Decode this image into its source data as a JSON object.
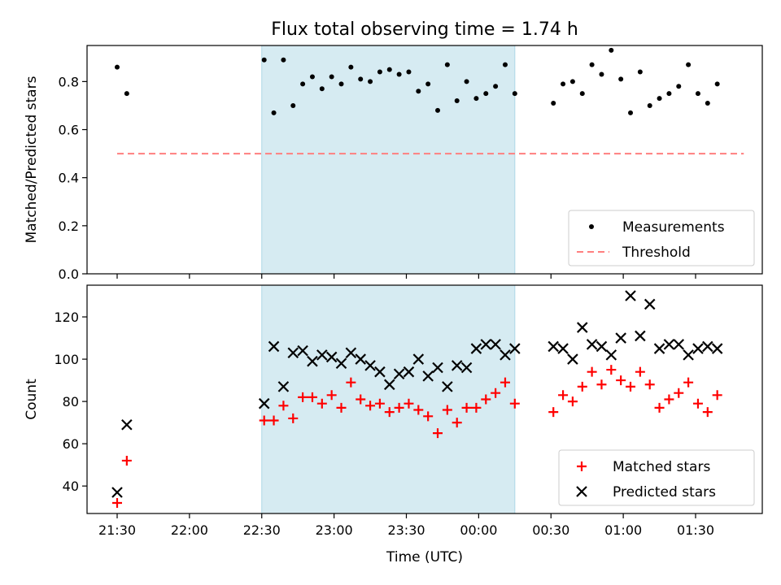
{
  "figure": {
    "title": "Flux total observing time = 1.74 h",
    "shade_color": "#add8e6",
    "shade_range": [
      "22:30",
      "00:15"
    ]
  },
  "chart_data": [
    {
      "type": "scatter",
      "ylabel": "Matched/Predicted stars",
      "xlabel": "",
      "ylim": [
        0,
        0.95
      ],
      "yticks": [
        "0.0",
        "0.2",
        "0.4",
        "0.6",
        "0.8"
      ],
      "ytick_values": [
        0,
        0.2,
        0.4,
        0.6,
        0.8
      ],
      "legend": "lower right",
      "legend_entries": [
        "Measurements",
        "Threshold"
      ],
      "series": [
        {
          "name": "Measurements",
          "color": "#000000",
          "marker": "dot",
          "x": [
            "21:30",
            "21:34",
            "22:31",
            "22:35",
            "22:39",
            "22:43",
            "22:47",
            "22:51",
            "22:55",
            "22:59",
            "23:03",
            "23:07",
            "23:11",
            "23:15",
            "23:19",
            "23:23",
            "23:27",
            "23:31",
            "23:35",
            "23:39",
            "23:43",
            "23:47",
            "23:51",
            "23:55",
            "23:59",
            "00:03",
            "00:07",
            "00:11",
            "00:15",
            "00:31",
            "00:35",
            "00:39",
            "00:43",
            "00:47",
            "00:51",
            "00:55",
            "00:59",
            "01:03",
            "01:07",
            "01:11",
            "01:15",
            "01:19",
            "01:23",
            "01:27",
            "01:31",
            "01:35",
            "01:39"
          ],
          "values": [
            0.86,
            0.75,
            0.89,
            0.67,
            0.89,
            0.7,
            0.79,
            0.82,
            0.77,
            0.82,
            0.79,
            0.86,
            0.81,
            0.8,
            0.84,
            0.85,
            0.83,
            0.84,
            0.76,
            0.79,
            0.68,
            0.87,
            0.72,
            0.8,
            0.73,
            0.75,
            0.78,
            0.87,
            0.75,
            0.71,
            0.79,
            0.8,
            0.75,
            0.87,
            0.83,
            0.93,
            0.81,
            0.67,
            0.84,
            0.7,
            0.73,
            0.75,
            0.78,
            0.87,
            0.75,
            0.71,
            0.79
          ]
        },
        {
          "name": "Threshold",
          "color": "#ff7f7f",
          "style": "dashed",
          "x": [
            "21:30",
            "01:50"
          ],
          "values": [
            0.5,
            0.5
          ]
        }
      ]
    },
    {
      "type": "scatter",
      "ylabel": "Count",
      "xlabel": "Time (UTC)",
      "ylim": [
        27,
        135
      ],
      "yticks": [
        "40",
        "60",
        "80",
        "100",
        "120"
      ],
      "ytick_values": [
        40,
        60,
        80,
        100,
        120
      ],
      "xticks": [
        "21:30",
        "22:00",
        "22:30",
        "23:00",
        "23:30",
        "00:00",
        "00:30",
        "01:00",
        "01:30"
      ],
      "legend": "lower right",
      "legend_entries": [
        "Matched stars",
        "Predicted stars"
      ],
      "series": [
        {
          "name": "Matched stars",
          "color": "#ff0000",
          "marker": "plus",
          "x": [
            "21:30",
            "21:34",
            "22:31",
            "22:35",
            "22:39",
            "22:43",
            "22:47",
            "22:51",
            "22:55",
            "22:59",
            "23:03",
            "23:07",
            "23:11",
            "23:15",
            "23:19",
            "23:23",
            "23:27",
            "23:31",
            "23:35",
            "23:39",
            "23:43",
            "23:47",
            "23:51",
            "23:55",
            "23:59",
            "00:03",
            "00:07",
            "00:11",
            "00:15",
            "00:31",
            "00:35",
            "00:39",
            "00:43",
            "00:47",
            "00:51",
            "00:55",
            "00:59",
            "01:03",
            "01:07",
            "01:11",
            "01:15",
            "01:19",
            "01:23",
            "01:27",
            "01:31",
            "01:35",
            "01:39"
          ],
          "values": [
            32,
            52,
            71,
            71,
            78,
            72,
            82,
            82,
            79,
            83,
            77,
            89,
            81,
            78,
            79,
            75,
            77,
            79,
            76,
            73,
            65,
            76,
            70,
            77,
            77,
            81,
            84,
            89,
            79,
            75,
            83,
            80,
            87,
            94,
            88,
            95,
            90,
            87,
            94,
            88,
            77,
            81,
            84,
            89,
            79,
            75,
            83
          ]
        },
        {
          "name": "Predicted stars",
          "color": "#000000",
          "marker": "x",
          "x": [
            "21:30",
            "21:34",
            "22:31",
            "22:35",
            "22:39",
            "22:43",
            "22:47",
            "22:51",
            "22:55",
            "22:59",
            "23:03",
            "23:07",
            "23:11",
            "23:15",
            "23:19",
            "23:23",
            "23:27",
            "23:31",
            "23:35",
            "23:39",
            "23:43",
            "23:47",
            "23:51",
            "23:55",
            "23:59",
            "00:03",
            "00:07",
            "00:11",
            "00:15",
            "00:31",
            "00:35",
            "00:39",
            "00:43",
            "00:47",
            "00:51",
            "00:55",
            "00:59",
            "01:03",
            "01:07",
            "01:11",
            "01:15",
            "01:19",
            "01:23",
            "01:27",
            "01:31",
            "01:35",
            "01:39"
          ],
          "values": [
            37,
            69,
            79,
            106,
            87,
            103,
            104,
            99,
            102,
            101,
            98,
            103,
            100,
            97,
            94,
            88,
            93,
            94,
            100,
            92,
            96,
            87,
            97,
            96,
            105,
            107,
            107,
            102,
            105,
            106,
            105,
            100,
            115,
            107,
            106,
            102,
            110,
            130,
            111,
            126,
            105,
            107,
            107,
            102,
            105,
            106,
            105
          ]
        }
      ]
    }
  ]
}
